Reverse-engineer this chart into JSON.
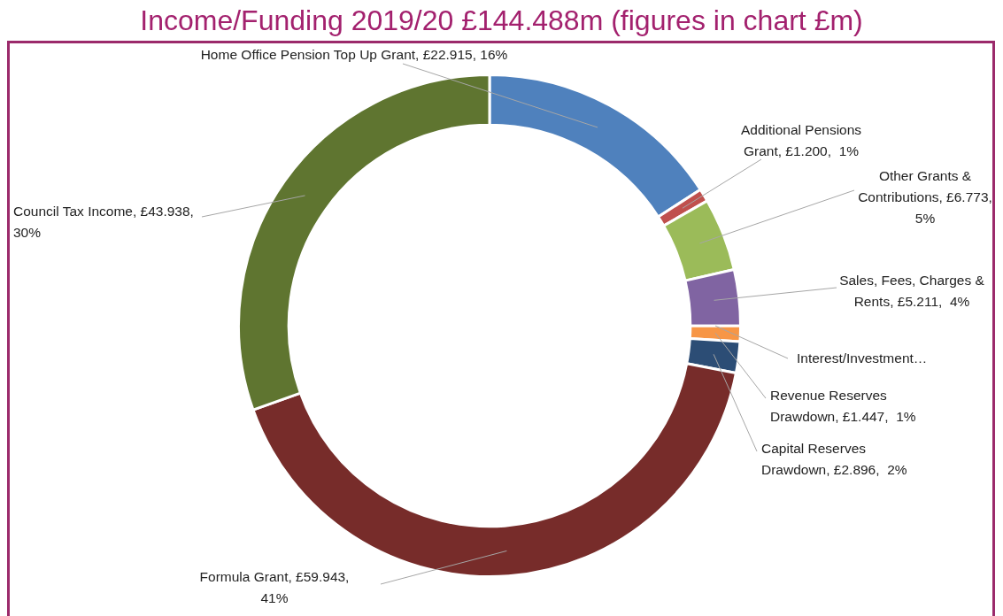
{
  "chart_data": {
    "type": "donut",
    "title": "Income/Funding 2019/20 £144.488m (figures in chart £m)",
    "categories": [
      "Home Office Pension Top Up Grant",
      "Additional Pensions Grant",
      "Other Grants & Contributions",
      "Sales, Fees, Charges & Rents",
      "Interest/Investment…",
      "Revenue Reserves Drawdown",
      "Capital Reserves Drawdown",
      "Formula Grant",
      "Council Tax Income"
    ],
    "values": [
      22.915,
      1.2,
      6.773,
      5.211,
      null,
      1.447,
      2.896,
      59.943,
      43.938
    ],
    "colors": [
      "#4f81bd",
      "#c0504d",
      "#9bbb59",
      "#8064a2",
      "#4bacc6",
      "#f79646",
      "#2c4d75",
      "#772c2a",
      "#5f7530"
    ],
    "value_labels": [
      "£22.915, 16%",
      "£1.200,  1%",
      "£6.773, 5%",
      "£5.211,  4%",
      null,
      "£1.447,  1%",
      "£2.896,  2%",
      "£59.943, 41%",
      "£43.938,  30%"
    ],
    "legend": false
  }
}
